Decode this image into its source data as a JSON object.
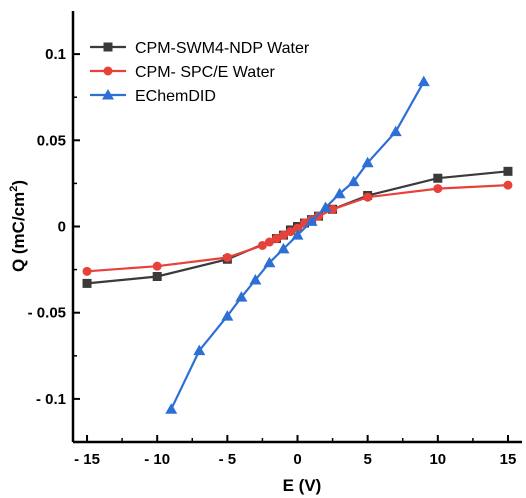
{
  "chart_data": {
    "type": "line",
    "xlabel": "E (V)",
    "ylabel_main": "Q (mC/cm",
    "ylabel_sup": "2",
    "ylabel_close": ")",
    "xlim": [
      -16,
      16
    ],
    "ylim": [
      -0.125,
      0.125
    ],
    "x_ticks": [
      -15,
      -10,
      -5,
      0,
      5,
      10,
      15
    ],
    "x_tick_labels": [
      "- 15",
      "- 10",
      "- 5",
      "0",
      "5",
      "10",
      "15"
    ],
    "y_ticks": [
      0.1,
      0.05,
      0,
      -0.05,
      -0.1
    ],
    "y_tick_labels": [
      "0.1",
      "0.05",
      "0",
      "- 0.05",
      "- 0.1"
    ],
    "legend_position": "top-left",
    "grid": false,
    "series": [
      {
        "name": "CPM-SWM4-NDP Water",
        "color": "#3a3a3a",
        "marker": "square",
        "x": [
          -15,
          -10,
          -5,
          -1.5,
          -1,
          -0.5,
          0,
          0.5,
          1,
          1.5,
          2.5,
          5,
          10,
          15
        ],
        "y": [
          -0.033,
          -0.029,
          -0.019,
          -0.007,
          -0.005,
          -0.002,
          0.0,
          0.002,
          0.004,
          0.006,
          0.01,
          0.018,
          0.028,
          0.032
        ]
      },
      {
        "name": "CPM- SPC/E Water",
        "color": "#e8413a",
        "marker": "circle",
        "x": [
          -15,
          -10,
          -5,
          -2.5,
          -2,
          -1.5,
          -1,
          -0.5,
          0,
          0.5,
          1,
          1.5,
          2.5,
          5,
          10,
          15
        ],
        "y": [
          -0.026,
          -0.023,
          -0.018,
          -0.011,
          -0.009,
          -0.007,
          -0.005,
          -0.003,
          -0.001,
          0.002,
          0.004,
          0.006,
          0.01,
          0.017,
          0.022,
          0.024
        ]
      },
      {
        "name": "EChemDID",
        "color": "#2e6fd6",
        "marker": "triangle",
        "x": [
          -9,
          -7,
          -5,
          -4,
          -3,
          -2,
          -1,
          0,
          1,
          2,
          3,
          4,
          5,
          7,
          9
        ],
        "y": [
          -0.106,
          -0.072,
          -0.052,
          -0.041,
          -0.031,
          -0.021,
          -0.013,
          -0.005,
          0.003,
          0.011,
          0.019,
          0.026,
          0.037,
          0.055,
          0.084
        ]
      }
    ]
  }
}
